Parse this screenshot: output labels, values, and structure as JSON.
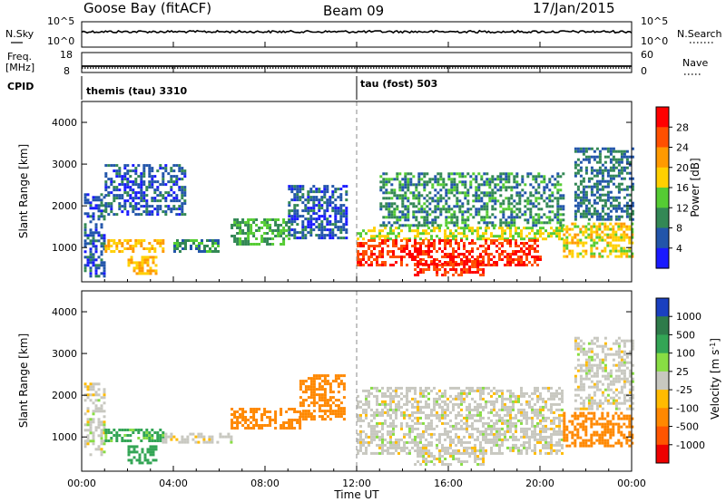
{
  "header": {
    "station": "Goose Bay (fitACF)",
    "beam": "Beam 09",
    "date": "17/Jan/2015"
  },
  "top_panels": {
    "nsky_label": "N.Sky",
    "nsky_ticks": [
      "10^5",
      "10^0"
    ],
    "nsearch_label": "N.Search",
    "nsearch_ticks": [
      "10^5",
      "10^0"
    ],
    "freq_label": "Freq.",
    "freq_unit": "[MHz]",
    "freq_ticks": [
      "18",
      "8"
    ],
    "nave_label": "Nave",
    "nave_ticks": [
      "60",
      "0"
    ],
    "cpid_label": "CPID",
    "cpid_segments": [
      {
        "name": "themis (tau) 3310",
        "start_hour": 0
      },
      {
        "name": "tau (fost) 503",
        "start_hour": 12
      }
    ]
  },
  "x_axis": {
    "title": "Time UT",
    "ticks": [
      "00:00",
      "04:00",
      "08:00",
      "12:00",
      "16:00",
      "20:00",
      "00:00"
    ],
    "tick_hours": [
      0,
      4,
      8,
      12,
      16,
      20,
      24
    ]
  },
  "power_colorbar": {
    "title": "Power [dB]",
    "labels": [
      "28",
      "24",
      "20",
      "16",
      "12",
      "8",
      "4"
    ],
    "colors": [
      "#ff0000",
      "#ff5000",
      "#ff9a00",
      "#ffd000",
      "#55cc33",
      "#338855",
      "#2255aa",
      "#1a1aff"
    ]
  },
  "velocity_colorbar": {
    "title": "Velocity [m s",
    "title_sup": "-1",
    "title_end": "]",
    "labels": [
      "1000",
      "500",
      "100",
      "25",
      "-25",
      "-100",
      "-500",
      "-1000"
    ],
    "colors": [
      "#1a40c0",
      "#2e7b4a",
      "#33a555",
      "#88dd44",
      "#c8c8c0",
      "#ffbb00",
      "#ff8800",
      "#ff5500",
      "#ee0000"
    ]
  },
  "chart_data": [
    {
      "type": "heatmap",
      "title": "Power [dB]",
      "xlabel": "",
      "ylabel": "Slant Range [km]",
      "xlim": [
        0,
        24
      ],
      "ylim": [
        180,
        4500
      ],
      "yticks": [
        1000,
        2000,
        3000,
        4000
      ],
      "zlim": [
        0,
        32
      ],
      "regions": [
        {
          "t0": 0.1,
          "t1": 1.0,
          "r0": 300,
          "r1": 2300,
          "level": 6
        },
        {
          "t0": 1.0,
          "t1": 3.5,
          "r0": 900,
          "r1": 1200,
          "level": 20
        },
        {
          "t0": 2.0,
          "t1": 3.2,
          "r0": 400,
          "r1": 800,
          "level": 20
        },
        {
          "t0": 1.0,
          "t1": 4.5,
          "r0": 1800,
          "r1": 3000,
          "level": 6
        },
        {
          "t0": 4.0,
          "t1": 6.0,
          "r0": 900,
          "r1": 1200,
          "level": 10
        },
        {
          "t0": 6.5,
          "t1": 9.0,
          "r0": 1100,
          "r1": 1700,
          "level": 12
        },
        {
          "t0": 9.0,
          "t1": 11.5,
          "r0": 1200,
          "r1": 2500,
          "level": 6
        },
        {
          "t0": 12.0,
          "t1": 21.0,
          "r0": 1200,
          "r1": 1500,
          "level": 16
        },
        {
          "t0": 12.0,
          "t1": 20.0,
          "r0": 600,
          "r1": 1200,
          "level": 28
        },
        {
          "t0": 14.5,
          "t1": 17.5,
          "r0": 350,
          "r1": 700,
          "level": 28
        },
        {
          "t0": 13.0,
          "t1": 21.0,
          "r0": 1500,
          "r1": 2800,
          "level": 10
        },
        {
          "t0": 21.0,
          "t1": 24.0,
          "r0": 800,
          "r1": 1600,
          "level": 18
        },
        {
          "t0": 21.5,
          "t1": 24.0,
          "r0": 1700,
          "r1": 3400,
          "level": 8
        }
      ]
    },
    {
      "type": "heatmap",
      "title": "Velocity [m s-1]",
      "xlabel": "Time UT",
      "ylabel": "Slant Range [km]",
      "xlim": [
        0,
        24
      ],
      "ylim": [
        180,
        4500
      ],
      "yticks": [
        1000,
        2000,
        3000,
        4000
      ],
      "zlim": [
        -1000,
        1000
      ],
      "regions": [
        {
          "t0": 0.1,
          "t1": 1.0,
          "r0": 600,
          "r1": 2300,
          "level": 0
        },
        {
          "t0": 1.0,
          "t1": 3.5,
          "r0": 900,
          "r1": 1200,
          "level": 120
        },
        {
          "t0": 2.0,
          "t1": 3.2,
          "r0": 400,
          "r1": 800,
          "level": 300
        },
        {
          "t0": 3.5,
          "t1": 6.5,
          "r0": 900,
          "r1": 1100,
          "level": 0
        },
        {
          "t0": 6.5,
          "t1": 9.5,
          "r0": 1200,
          "r1": 1700,
          "level": -300
        },
        {
          "t0": 9.5,
          "t1": 11.5,
          "r0": 1400,
          "r1": 2500,
          "level": -300
        },
        {
          "t0": 12.0,
          "t1": 21.0,
          "r0": 600,
          "r1": 2200,
          "level": 0
        },
        {
          "t0": 14.5,
          "t1": 17.5,
          "r0": 350,
          "r1": 700,
          "level": 0
        },
        {
          "t0": 21.0,
          "t1": 24.0,
          "r0": 800,
          "r1": 1600,
          "level": -300
        },
        {
          "t0": 21.5,
          "t1": 24.0,
          "r0": 1700,
          "r1": 3400,
          "level": 0
        }
      ]
    }
  ]
}
